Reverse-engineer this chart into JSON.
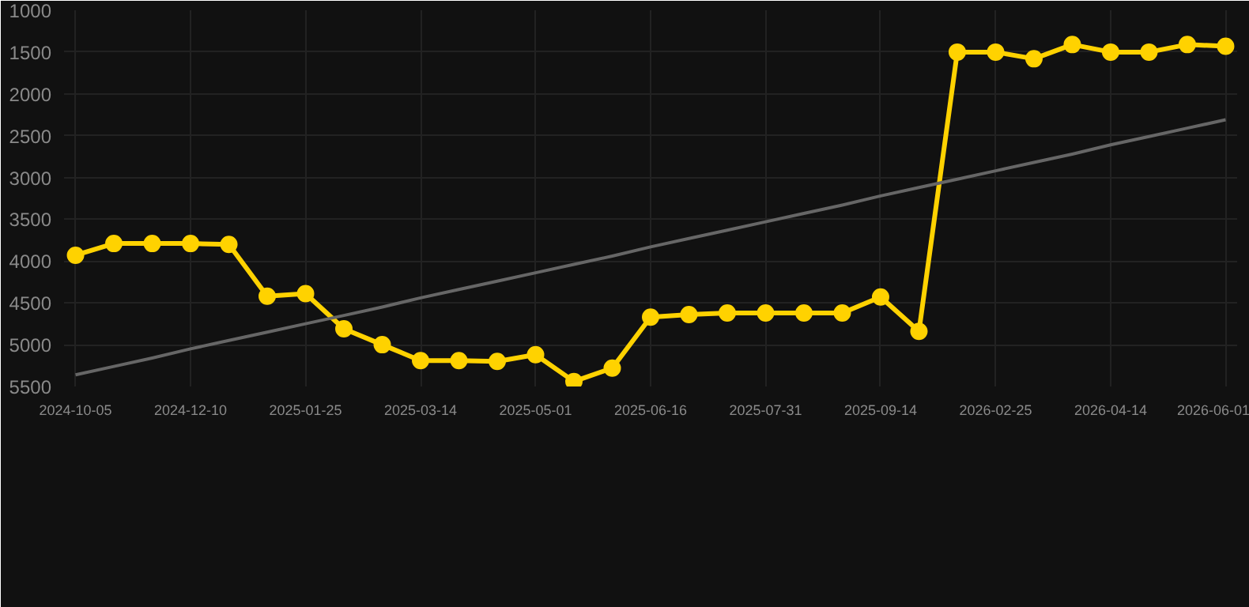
{
  "chart_data": {
    "type": "line",
    "categories": [
      "2024-10-05",
      null,
      null,
      "2024-12-10",
      null,
      null,
      "2025-01-25",
      null,
      null,
      "2025-03-14",
      null,
      null,
      "2025-05-01",
      null,
      null,
      "2025-06-16",
      null,
      null,
      "2025-07-31",
      null,
      null,
      "2025-09-14",
      null,
      null,
      "2026-02-25",
      null,
      null,
      "2026-04-14",
      null,
      null,
      "2026-06-01"
    ],
    "series": [
      {
        "color": "#ffd200",
        "values": [
          3930,
          3790,
          3790,
          3790,
          3800,
          4420,
          4390,
          4810,
          5000,
          5190,
          5190,
          5200,
          5120,
          5440,
          5280,
          4670,
          4640,
          4620,
          4620,
          4620,
          4620,
          4430,
          4840,
          1500,
          1500,
          1580,
          1410,
          1500,
          1500,
          1410,
          1430
        ]
      },
      {
        "type": "line",
        "color": "#666666",
        "marker": "none",
        "values": [
          5360,
          5260,
          5160,
          5050,
          4950,
          4850,
          4750,
          4650,
          4550,
          4440,
          4340,
          4240,
          4140,
          4040,
          3940,
          3830,
          3730,
          3630,
          3530,
          3430,
          3330,
          3220,
          3120,
          3020,
          2920,
          2820,
          2720,
          2610,
          2510,
          2410,
          2310
        ]
      }
    ],
    "ylim": [
      5500,
      1000
    ],
    "yticks": [
      1000,
      1500,
      2000,
      2500,
      3000,
      3500,
      4000,
      4500,
      5000,
      5500
    ],
    "grid": true,
    "marker": "circle",
    "line_style": "solid"
  }
}
